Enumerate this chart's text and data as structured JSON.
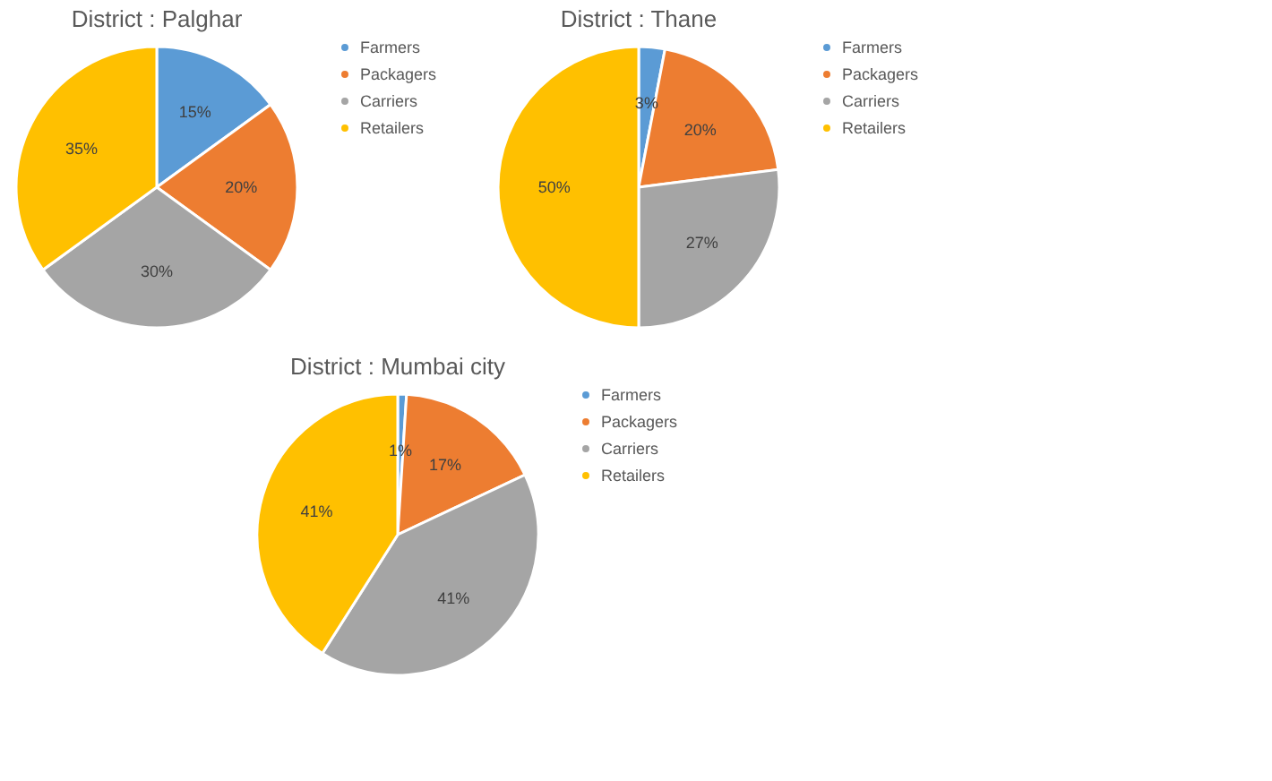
{
  "chart_data": [
    {
      "type": "pie",
      "title": "District : Palghar",
      "categories": [
        "Farmers",
        "Packagers",
        "Carriers",
        "Retailers"
      ],
      "values": [
        15,
        20,
        30,
        35
      ],
      "value_labels": [
        "15%",
        "20%",
        "30%",
        "35%"
      ],
      "colors": [
        "#5b9bd5",
        "#ed7d31",
        "#a5a5a5",
        "#ffc000"
      ],
      "legend": "right"
    },
    {
      "type": "pie",
      "title": "District : Thane",
      "categories": [
        "Farmers",
        "Packagers",
        "Carriers",
        "Retailers"
      ],
      "values": [
        3,
        20,
        27,
        50
      ],
      "value_labels": [
        "3%",
        "20%",
        "27%",
        "50%"
      ],
      "colors": [
        "#5b9bd5",
        "#ed7d31",
        "#a5a5a5",
        "#ffc000"
      ],
      "legend": "right"
    },
    {
      "type": "pie",
      "title": "District : Mumbai city",
      "categories": [
        "Farmers",
        "Packagers",
        "Carriers",
        "Retailers"
      ],
      "values": [
        1,
        17,
        41,
        41
      ],
      "value_labels": [
        "1%",
        "17%",
        "41%",
        "41%"
      ],
      "colors": [
        "#5b9bd5",
        "#ed7d31",
        "#a5a5a5",
        "#ffc000"
      ],
      "legend": "right"
    }
  ]
}
